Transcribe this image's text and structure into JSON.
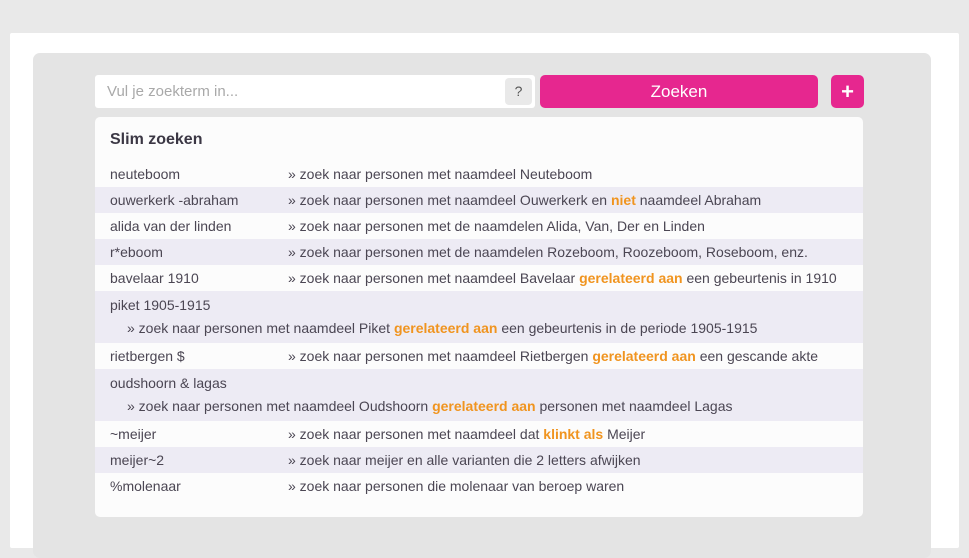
{
  "colors": {
    "accent_pink": "#e6278f",
    "highlight_orange": "#f0941f",
    "alt_row_lavender": "#edebf4"
  },
  "search": {
    "placeholder": "Vul je zoekterm in...",
    "help_label": "?",
    "button_label": "Zoeken",
    "add_label": "+"
  },
  "examples": {
    "title": "Slim zoeken",
    "rows": [
      {
        "term": "neuteboom",
        "two_line": false,
        "parts": [
          {
            "t": "» zoek naar personen met naamdeel Neuteboom",
            "hl": false
          }
        ]
      },
      {
        "term": "ouwerkerk -abraham",
        "two_line": false,
        "parts": [
          {
            "t": "» zoek naar personen met naamdeel Ouwerkerk en ",
            "hl": false
          },
          {
            "t": "niet",
            "hl": true
          },
          {
            "t": " naamdeel Abraham",
            "hl": false
          }
        ]
      },
      {
        "term": "alida van der linden",
        "two_line": false,
        "parts": [
          {
            "t": "» zoek naar personen met de naamdelen Alida, Van, Der en Linden",
            "hl": false
          }
        ]
      },
      {
        "term": "r*eboom",
        "two_line": false,
        "parts": [
          {
            "t": "» zoek naar personen met de naamdelen Rozeboom, Roozeboom, Roseboom, enz.",
            "hl": false
          }
        ]
      },
      {
        "term": "bavelaar 1910",
        "two_line": false,
        "parts": [
          {
            "t": "» zoek naar personen met naamdeel Bavelaar ",
            "hl": false
          },
          {
            "t": "gerelateerd aan",
            "hl": true
          },
          {
            "t": " een gebeurtenis in 1910",
            "hl": false
          }
        ]
      },
      {
        "term": "piket 1905-1915",
        "two_line": true,
        "parts": [
          {
            "t": "» zoek naar personen met naamdeel Piket ",
            "hl": false
          },
          {
            "t": "gerelateerd aan",
            "hl": true
          },
          {
            "t": " een gebeurtenis in de periode 1905-1915",
            "hl": false
          }
        ]
      },
      {
        "term": "rietbergen $",
        "two_line": false,
        "parts": [
          {
            "t": "» zoek naar personen met naamdeel Rietbergen ",
            "hl": false
          },
          {
            "t": "gerelateerd aan",
            "hl": true
          },
          {
            "t": " een gescande akte",
            "hl": false
          }
        ]
      },
      {
        "term": "oudshoorn & lagas",
        "two_line": true,
        "parts": [
          {
            "t": "» zoek naar personen met naamdeel Oudshoorn ",
            "hl": false
          },
          {
            "t": "gerelateerd aan",
            "hl": true
          },
          {
            "t": " personen met naamdeel Lagas",
            "hl": false
          }
        ]
      },
      {
        "term": "~meijer",
        "two_line": false,
        "parts": [
          {
            "t": "» zoek naar personen met naamdeel dat ",
            "hl": false
          },
          {
            "t": "klinkt als",
            "hl": true
          },
          {
            "t": " Meijer",
            "hl": false
          }
        ]
      },
      {
        "term": "meijer~2",
        "two_line": false,
        "parts": [
          {
            "t": "» zoek naar meijer en alle varianten die 2 letters afwijken",
            "hl": false
          }
        ]
      },
      {
        "term": "%molenaar",
        "two_line": false,
        "parts": [
          {
            "t": "» zoek naar personen die molenaar van beroep waren",
            "hl": false
          }
        ]
      }
    ]
  }
}
